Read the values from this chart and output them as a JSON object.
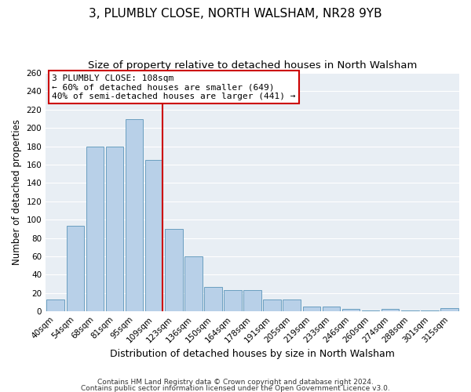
{
  "title": "3, PLUMBLY CLOSE, NORTH WALSHAM, NR28 9YB",
  "subtitle": "Size of property relative to detached houses in North Walsham",
  "xlabel": "Distribution of detached houses by size in North Walsham",
  "ylabel": "Number of detached properties",
  "bar_color": "#b8d0e8",
  "bar_edge_color": "#6a9fc0",
  "background_color": "#e8eef4",
  "grid_color": "#ffffff",
  "categories": [
    "40sqm",
    "54sqm",
    "68sqm",
    "81sqm",
    "95sqm",
    "109sqm",
    "123sqm",
    "136sqm",
    "150sqm",
    "164sqm",
    "178sqm",
    "191sqm",
    "205sqm",
    "219sqm",
    "233sqm",
    "246sqm",
    "260sqm",
    "274sqm",
    "288sqm",
    "301sqm",
    "315sqm"
  ],
  "values": [
    13,
    93,
    180,
    180,
    210,
    165,
    90,
    60,
    27,
    23,
    23,
    13,
    13,
    5,
    5,
    3,
    1,
    3,
    1,
    1,
    4
  ],
  "ylim": [
    0,
    260
  ],
  "yticks": [
    0,
    20,
    40,
    60,
    80,
    100,
    120,
    140,
    160,
    180,
    200,
    220,
    240,
    260
  ],
  "vline_color": "#cc0000",
  "vline_bar_index": 5,
  "annotation_title": "3 PLUMBLY CLOSE: 108sqm",
  "annotation_line1": "← 60% of detached houses are smaller (649)",
  "annotation_line2": "40% of semi-detached houses are larger (441) →",
  "annotation_box_edge": "#cc0000",
  "footer_line1": "Contains HM Land Registry data © Crown copyright and database right 2024.",
  "footer_line2": "Contains public sector information licensed under the Open Government Licence v3.0.",
  "title_fontsize": 11,
  "subtitle_fontsize": 9.5,
  "xlabel_fontsize": 9,
  "ylabel_fontsize": 8.5,
  "tick_fontsize": 7.5,
  "annotation_fontsize": 8,
  "footer_fontsize": 6.5
}
